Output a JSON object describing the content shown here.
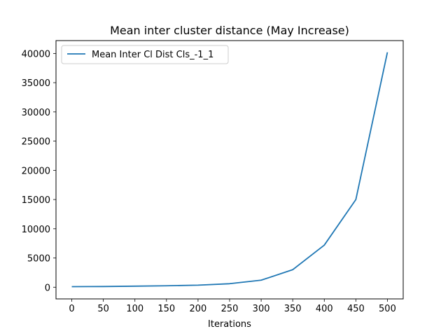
{
  "chart_data": {
    "type": "line",
    "title": "Mean inter cluster distance (May Increase)",
    "xlabel": "Iterations",
    "ylabel": "",
    "xlim": [
      -25,
      525
    ],
    "ylim": [
      -2000,
      42200
    ],
    "xticks": [
      0,
      50,
      100,
      150,
      200,
      250,
      300,
      350,
      400,
      450,
      500
    ],
    "yticks": [
      0,
      5000,
      10000,
      15000,
      20000,
      25000,
      30000,
      35000,
      40000
    ],
    "xtick_labels": [
      "0",
      "50",
      "100",
      "150",
      "200",
      "250",
      "300",
      "350",
      "400",
      "450",
      "500"
    ],
    "ytick_labels": [
      "0",
      "5000",
      "10000",
      "15000",
      "20000",
      "25000",
      "30000",
      "35000",
      "40000"
    ],
    "legend_position": "top-left",
    "grid": false,
    "series": [
      {
        "name": "Mean Inter Cl Dist Cls_-1_1",
        "color": "#1f77b4",
        "x": [
          0,
          50,
          100,
          150,
          200,
          250,
          300,
          350,
          400,
          450,
          500
        ],
        "y": [
          100,
          120,
          180,
          250,
          350,
          600,
          1200,
          3000,
          7200,
          15000,
          40200
        ]
      }
    ]
  }
}
